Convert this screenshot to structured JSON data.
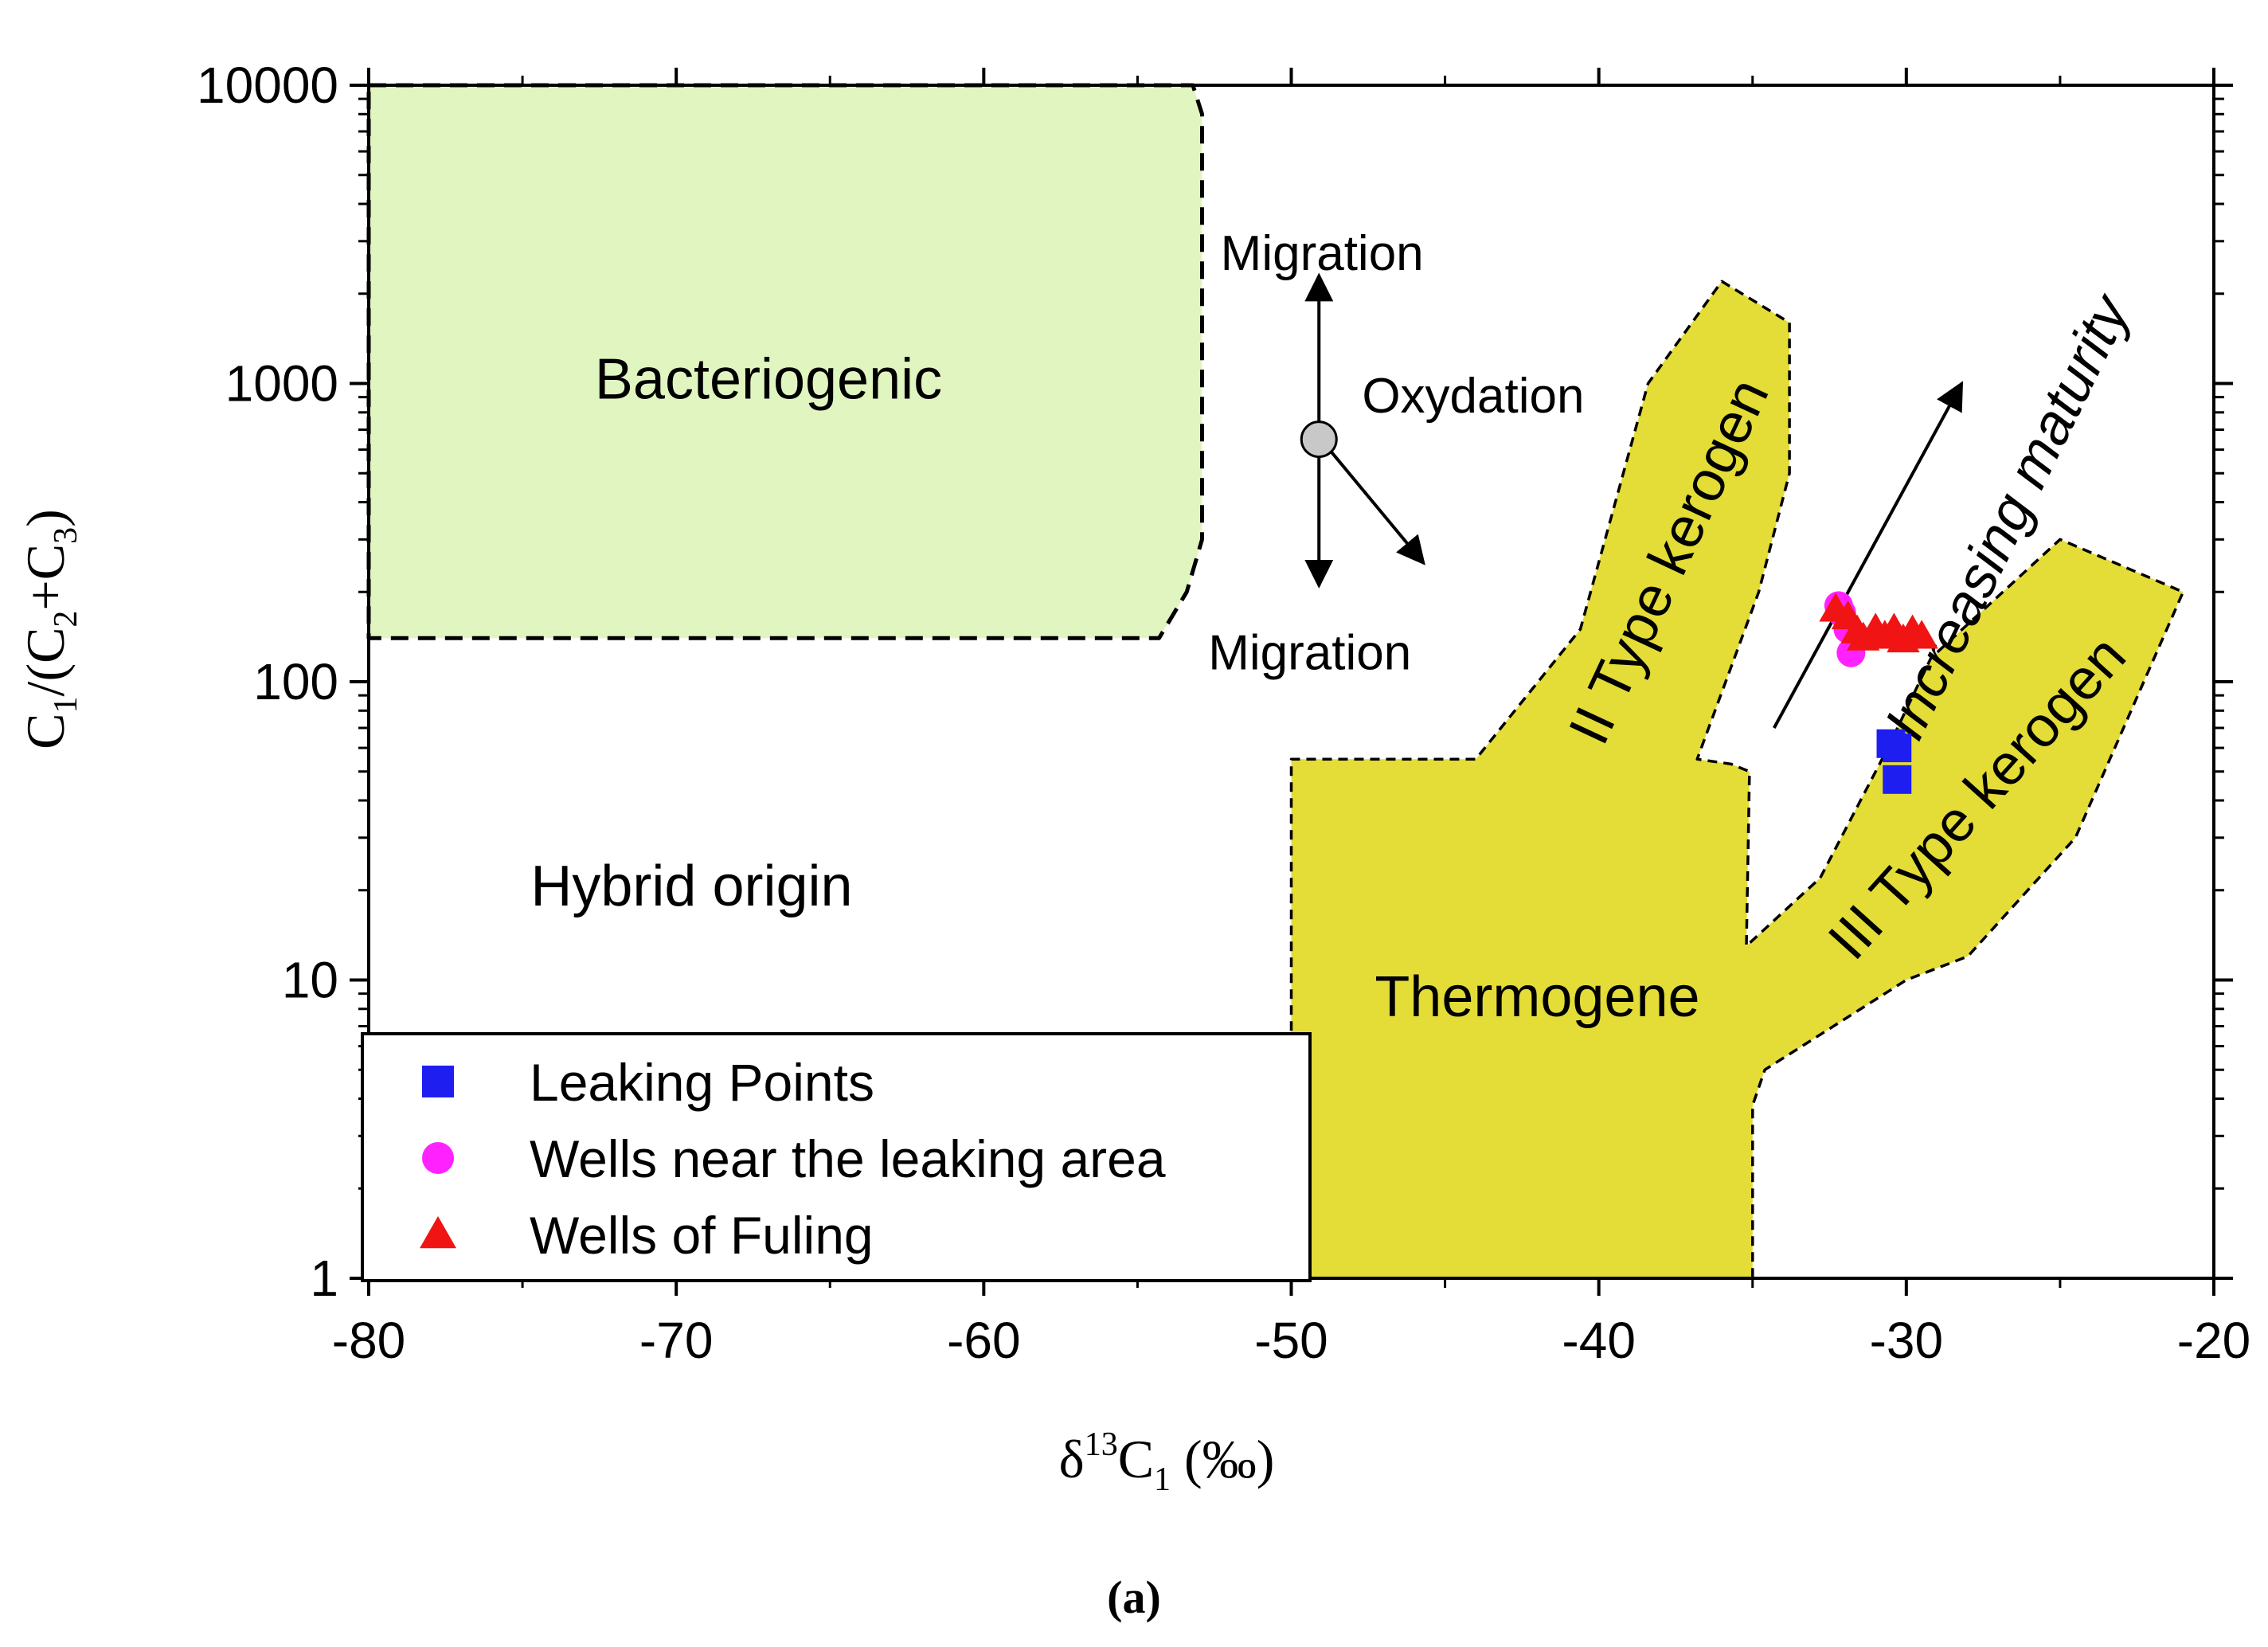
{
  "chart_data": {
    "type": "scatter",
    "caption": "(a)",
    "xlabel": {
      "prefix": "δ",
      "sup": "13",
      "base": "C",
      "sub": "1",
      "suffix": " (‰)"
    },
    "ylabel": {
      "c1": "C",
      "s1": "1",
      "mid1": "/(C",
      "s2": "2",
      "mid2": "+C",
      "s3": "3",
      "end": ")"
    },
    "xlim": [
      -80,
      -20
    ],
    "ylim": [
      1,
      10000
    ],
    "yscale": "log",
    "x_ticks": [
      -80,
      -70,
      -60,
      -50,
      -40,
      -30,
      -20
    ],
    "x_tick_labels": [
      "-80",
      "-70",
      "-60",
      "-50",
      "-40",
      "-30",
      "-20"
    ],
    "y_ticks": [
      1,
      10,
      100,
      1000,
      10000
    ],
    "y_tick_labels": [
      "1",
      "10",
      "100",
      "1000",
      "10000"
    ],
    "regions": [
      {
        "name": "Bacteriogenic",
        "fill": "#e1f5c0",
        "label_at": [
          -67,
          1000
        ],
        "polygon": [
          [
            -80,
            10000
          ],
          [
            -53.2,
            10000
          ],
          [
            -52.9,
            8000
          ],
          [
            -52.9,
            300
          ],
          [
            -53.4,
            200
          ],
          [
            -54.3,
            140
          ],
          [
            -80,
            140
          ]
        ]
      },
      {
        "name": "Thermogene",
        "fill": "#e4dc37",
        "label_at": [
          -42,
          8.5
        ],
        "polygon": [
          [
            -50,
            1
          ],
          [
            -35,
            1
          ],
          [
            -35,
            3.8
          ],
          [
            -34.6,
            5
          ],
          [
            -30,
            10
          ],
          [
            -28,
            12
          ],
          [
            -24.5,
            30
          ],
          [
            -21,
            200
          ],
          [
            -25,
            300
          ],
          [
            -29.2,
            120
          ],
          [
            -30.6,
            60
          ],
          [
            -32.8,
            22
          ],
          [
            -35.2,
            13
          ],
          [
            -35.2,
            13
          ],
          [
            -35.1,
            50
          ],
          [
            -35.7,
            53
          ],
          [
            -36.8,
            55
          ],
          [
            -34.8,
            200
          ],
          [
            -33.8,
            500
          ],
          [
            -33.8,
            1600
          ],
          [
            -36,
            2200
          ],
          [
            -38.4,
            1000
          ],
          [
            -40.6,
            150
          ],
          [
            -44,
            55
          ],
          [
            -50,
            55
          ]
        ]
      }
    ],
    "region_texts": [
      {
        "text": "Hybrid origin",
        "at": [
          -69.5,
          20
        ]
      },
      {
        "text": "II Type kerogen",
        "at": [
          -37.6,
          250
        ],
        "rotate": -65
      },
      {
        "text": "III Type kerogen",
        "at": [
          -27.6,
          40
        ],
        "rotate": -48
      },
      {
        "text": "Increasing maturity",
        "at": [
          -26.6,
          350
        ],
        "rotate": -64
      }
    ],
    "annotations": {
      "center": [
        -49.1,
        650
      ],
      "up_label": "Migration",
      "up_at": [
        -52.3,
        2400
      ],
      "down_label": "Migration",
      "down_at": [
        -52.7,
        110
      ],
      "oxid_label": "Oxydation",
      "oxid_at": [
        -47.7,
        800
      ]
    },
    "series": [
      {
        "name": "Leaking Points",
        "marker": "square",
        "color": "#1e1ef0",
        "x": [
          -30.5,
          -30.3,
          -30.3
        ],
        "y": [
          62,
          60,
          47
        ]
      },
      {
        "name": "Wells near the leaking area",
        "marker": "circle",
        "color": "#ff22ff",
        "x": [
          -32.2,
          -32.1,
          -31.9,
          -31.8
        ],
        "y": [
          180,
          170,
          150,
          125
        ]
      },
      {
        "name": "Wells of Fuling",
        "marker": "triangle",
        "color": "#f01414",
        "x": [
          -32.3,
          -31.9,
          -31.6,
          -31.4,
          -31.0,
          -30.7,
          -30.4,
          -30.1,
          -29.8,
          -29.5
        ],
        "y": [
          175,
          165,
          148,
          140,
          150,
          142,
          150,
          138,
          148,
          142
        ]
      }
    ],
    "legend": {
      "position": "bottom-left",
      "entries": [
        "Leaking Points",
        "Wells near the leaking area",
        "Wells of Fuling"
      ]
    }
  }
}
